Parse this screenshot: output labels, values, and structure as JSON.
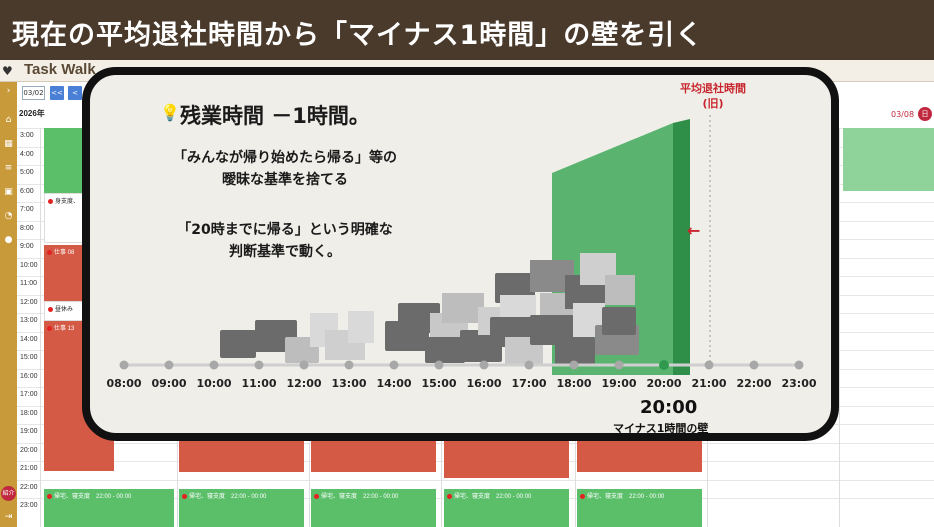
{
  "banner": {
    "title": "現在の平均退社時間から「マイナス1時間」の壁を引く"
  },
  "app": {
    "title": "Task Walk"
  },
  "toolbar": {
    "date": "03/02",
    "prev_fast": "<<",
    "prev": "<",
    "year": "2026年"
  },
  "calendar": {
    "hours": [
      "3:00",
      "4:00",
      "5:00",
      "6:00",
      "7:00",
      "8:00",
      "9:00",
      "10:00",
      "11:00",
      "12:00",
      "13:00",
      "14:00",
      "15:00",
      "16:00",
      "17:00",
      "18:00",
      "19:00",
      "20:00",
      "21:00",
      "22:00",
      "23:00"
    ],
    "date_header": "03/08",
    "date_badge": "日",
    "events": {
      "prep": "身支度、",
      "work1": "仕事 08",
      "lunch": "昼休み",
      "work2": "仕事 13",
      "home": "帰宅、寝支度　22:00 - 00:00"
    }
  },
  "sidebar": {
    "intro_label": "紹介"
  },
  "overlay": {
    "title": "残業時間 －1時間。",
    "line1": "「みんなが帰り始めたら帰る」等の",
    "line2": "曖昧な基準を捨てる",
    "line3": "「20時までに帰る」という明確な",
    "line4": "判断基準で動く。",
    "wall_label_line1": "平均退社時間",
    "wall_label_line2": "(旧)",
    "arrow": "←",
    "big_time": "20:00",
    "wall_caption": "マイナス1時間の壁",
    "timeline": [
      "08:00",
      "09:00",
      "10:00",
      "11:00",
      "12:00",
      "13:00",
      "14:00",
      "15:00",
      "16:00",
      "17:00",
      "18:00",
      "19:00",
      "20:00",
      "21:00",
      "22:00",
      "23:00"
    ]
  },
  "colors": {
    "wall": "#3fa95a",
    "banner": "#4a3a2c",
    "accent_red": "#c8262e"
  }
}
